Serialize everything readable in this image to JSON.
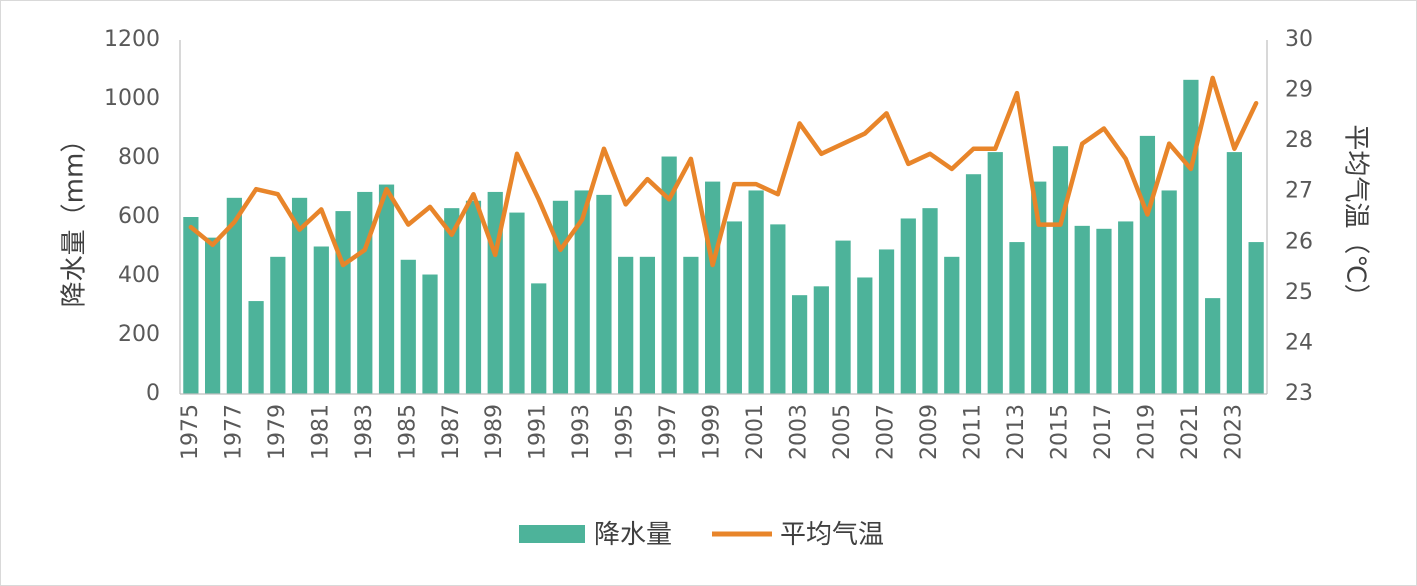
{
  "chart_data": {
    "type": "bar+line",
    "title": "",
    "years": [
      "1975",
      "1976",
      "1977",
      "1978",
      "1979",
      "1980",
      "1981",
      "1982",
      "1983",
      "1984",
      "1985",
      "1986",
      "1987",
      "1988",
      "1989",
      "1990",
      "1991",
      "1992",
      "1993",
      "1994",
      "1995",
      "1996",
      "1997",
      "1998",
      "1999",
      "2000",
      "2001",
      "2002",
      "2003",
      "2004",
      "2005",
      "2006",
      "2007",
      "2008",
      "2009",
      "2010",
      "2011",
      "2012",
      "2013",
      "2014",
      "2015",
      "2016",
      "2017",
      "2018",
      "2019",
      "2020",
      "2021",
      "2022",
      "2023",
      "2024"
    ],
    "x_tick_labels": [
      "1975",
      "1977",
      "1979",
      "1981",
      "1983",
      "1985",
      "1987",
      "1989",
      "1991",
      "1993",
      "1995",
      "1997",
      "1999",
      "2001",
      "2003",
      "2005",
      "2007",
      "2009",
      "2011",
      "2013",
      "2015",
      "2017",
      "2019",
      "2021",
      "2023"
    ],
    "series": [
      {
        "name": "降水量",
        "type": "bar",
        "axis": "left",
        "color": "#4db39a",
        "values": [
          600,
          530,
          665,
          315,
          465,
          665,
          500,
          620,
          685,
          710,
          455,
          405,
          630,
          655,
          685,
          615,
          375,
          655,
          690,
          675,
          465,
          465,
          805,
          465,
          720,
          585,
          690,
          575,
          335,
          365,
          520,
          395,
          490,
          595,
          630,
          465,
          745,
          820,
          515,
          720,
          840,
          570,
          560,
          585,
          875,
          690,
          1065,
          325,
          820,
          515
        ]
      },
      {
        "name": "平均气温",
        "type": "line",
        "axis": "right",
        "color": "#e8852a",
        "values": [
          26.3,
          25.95,
          26.4,
          27.05,
          26.95,
          26.25,
          26.65,
          25.55,
          25.85,
          27.05,
          26.35,
          26.7,
          26.15,
          26.95,
          25.75,
          27.75,
          26.85,
          25.85,
          26.45,
          27.85,
          26.75,
          27.25,
          26.85,
          27.65,
          25.55,
          27.15,
          27.15,
          26.95,
          28.35,
          27.75,
          27.95,
          28.15,
          28.55,
          27.55,
          27.75,
          27.45,
          27.85,
          27.85,
          28.95,
          26.35,
          26.35,
          27.95,
          28.25,
          27.65,
          26.55,
          27.95,
          27.45,
          29.25,
          27.85,
          28.75
        ]
      }
    ],
    "y_left": {
      "label": "降水量（mm）",
      "min": 0,
      "max": 1200,
      "ticks": [
        "0",
        "200",
        "400",
        "600",
        "800",
        "1000",
        "1200"
      ]
    },
    "y_right": {
      "label": "平均气温（℃）",
      "min": 23,
      "max": 30,
      "ticks": [
        "23",
        "24",
        "25",
        "26",
        "27",
        "28",
        "29",
        "30"
      ]
    },
    "legend": {
      "placement": "bottom",
      "items": [
        "降水量",
        "平均气温"
      ]
    },
    "grid": false
  }
}
